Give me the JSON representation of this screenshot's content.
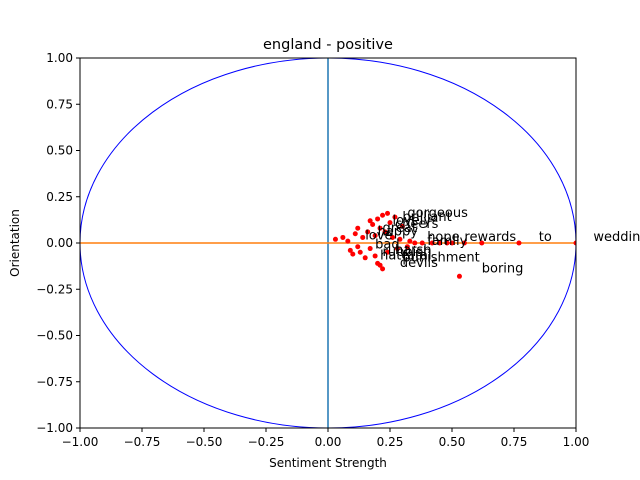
{
  "chart_data": {
    "type": "scatter",
    "title": "england - positive",
    "xlabel": "Sentiment Strength",
    "ylabel": "Orientation",
    "xlim": [
      -1.0,
      1.0
    ],
    "ylim": [
      -1.0,
      1.0
    ],
    "x_ticks": [
      "−1.00",
      "−0.75",
      "−0.50",
      "−0.25",
      "0.00",
      "0.25",
      "0.50",
      "0.75",
      "1.00"
    ],
    "y_ticks": [
      "1.00",
      "0.75",
      "0.50",
      "0.25",
      "0.00",
      "−0.25",
      "−0.50",
      "−0.75",
      "−1.00"
    ],
    "x_tick_values": [
      -1.0,
      -0.75,
      -0.5,
      -0.25,
      0.0,
      0.25,
      0.5,
      0.75,
      1.0
    ],
    "y_tick_values": [
      1.0,
      0.75,
      0.5,
      0.25,
      0.0,
      -0.25,
      -0.5,
      -0.75,
      -1.0
    ],
    "grid": false,
    "colors": {
      "points": "#ff0000",
      "circle": "#0000ff",
      "vertical_line": "#1f77b4",
      "horizontal_line": "#ff7f0e",
      "axes": "#000000"
    },
    "reference_circle": {
      "cx": 0,
      "cy": 0,
      "r": 1
    },
    "vertical_line_x": 0.0,
    "horizontal_line_y": 0.0,
    "points": [
      {
        "x": 0.03,
        "y": 0.02
      },
      {
        "x": 0.06,
        "y": 0.03
      },
      {
        "x": 0.08,
        "y": 0.01
      },
      {
        "x": 0.09,
        "y": -0.04
      },
      {
        "x": 0.1,
        "y": -0.06
      },
      {
        "x": 0.11,
        "y": 0.05
      },
      {
        "x": 0.12,
        "y": 0.08
      },
      {
        "x": 0.12,
        "y": -0.02
      },
      {
        "x": 0.13,
        "y": -0.05
      },
      {
        "x": 0.14,
        "y": 0.03
      },
      {
        "x": 0.15,
        "y": -0.08
      },
      {
        "x": 0.16,
        "y": 0.06
      },
      {
        "x": 0.17,
        "y": 0.12
      },
      {
        "x": 0.17,
        "y": -0.03
      },
      {
        "x": 0.18,
        "y": 0.1
      },
      {
        "x": 0.19,
        "y": 0.04
      },
      {
        "x": 0.19,
        "y": -0.07
      },
      {
        "x": 0.2,
        "y": 0.13
      },
      {
        "x": 0.2,
        "y": -0.11
      },
      {
        "x": 0.21,
        "y": 0.08
      },
      {
        "x": 0.21,
        "y": -0.12
      },
      {
        "x": 0.22,
        "y": 0.15
      },
      {
        "x": 0.22,
        "y": -0.14
      },
      {
        "x": 0.23,
        "y": 0.06
      },
      {
        "x": 0.24,
        "y": 0.16
      },
      {
        "x": 0.24,
        "y": -0.05
      },
      {
        "x": 0.25,
        "y": 0.11
      },
      {
        "x": 0.26,
        "y": 0.03
      },
      {
        "x": 0.27,
        "y": 0.14
      },
      {
        "x": 0.28,
        "y": -0.03
      },
      {
        "x": 0.29,
        "y": 0.02
      },
      {
        "x": 0.3,
        "y": 0.09
      },
      {
        "x": 0.32,
        "y": -0.02
      },
      {
        "x": 0.33,
        "y": 0.01
      },
      {
        "x": 0.35,
        "y": 0.0
      },
      {
        "x": 0.38,
        "y": 0.0
      },
      {
        "x": 0.42,
        "y": 0.0
      },
      {
        "x": 0.45,
        "y": 0.0
      },
      {
        "x": 0.48,
        "y": 0.0
      },
      {
        "x": 0.5,
        "y": 0.0
      },
      {
        "x": 0.53,
        "y": -0.18
      },
      {
        "x": 0.55,
        "y": 0.0
      },
      {
        "x": 0.62,
        "y": 0.0
      },
      {
        "x": 0.77,
        "y": 0.0
      },
      {
        "x": 1.0,
        "y": 0.0
      }
    ],
    "annotations": [
      {
        "text": "gorgeous",
        "x": 0.32,
        "y": 0.14
      },
      {
        "text": "brilliant",
        "x": 0.3,
        "y": 0.12
      },
      {
        "text": "lovely",
        "x": 0.26,
        "y": 0.1
      },
      {
        "text": "cheers",
        "x": 0.27,
        "y": 0.08
      },
      {
        "text": "great",
        "x": 0.22,
        "y": 0.06
      },
      {
        "text": "happy",
        "x": 0.2,
        "y": 0.04
      },
      {
        "text": "love",
        "x": 0.15,
        "y": 0.02
      },
      {
        "text": "hope",
        "x": 0.4,
        "y": 0.01
      },
      {
        "text": "rewards",
        "x": 0.55,
        "y": 0.01
      },
      {
        "text": "to",
        "x": 0.85,
        "y": 0.01
      },
      {
        "text": "wedding",
        "x": 1.07,
        "y": 0.01
      },
      {
        "text": "family",
        "x": 0.4,
        "y": -0.01
      },
      {
        "text": "bad",
        "x": 0.19,
        "y": -0.03
      },
      {
        "text": "rubbish",
        "x": 0.22,
        "y": -0.07
      },
      {
        "text": "harsh",
        "x": 0.27,
        "y": -0.06
      },
      {
        "text": "hate",
        "x": 0.21,
        "y": -0.09
      },
      {
        "text": "fatal",
        "x": 0.3,
        "y": -0.09
      },
      {
        "text": "punishment",
        "x": 0.3,
        "y": -0.1
      },
      {
        "text": "devils",
        "x": 0.29,
        "y": -0.13
      },
      {
        "text": "boring",
        "x": 0.62,
        "y": -0.16
      }
    ]
  }
}
